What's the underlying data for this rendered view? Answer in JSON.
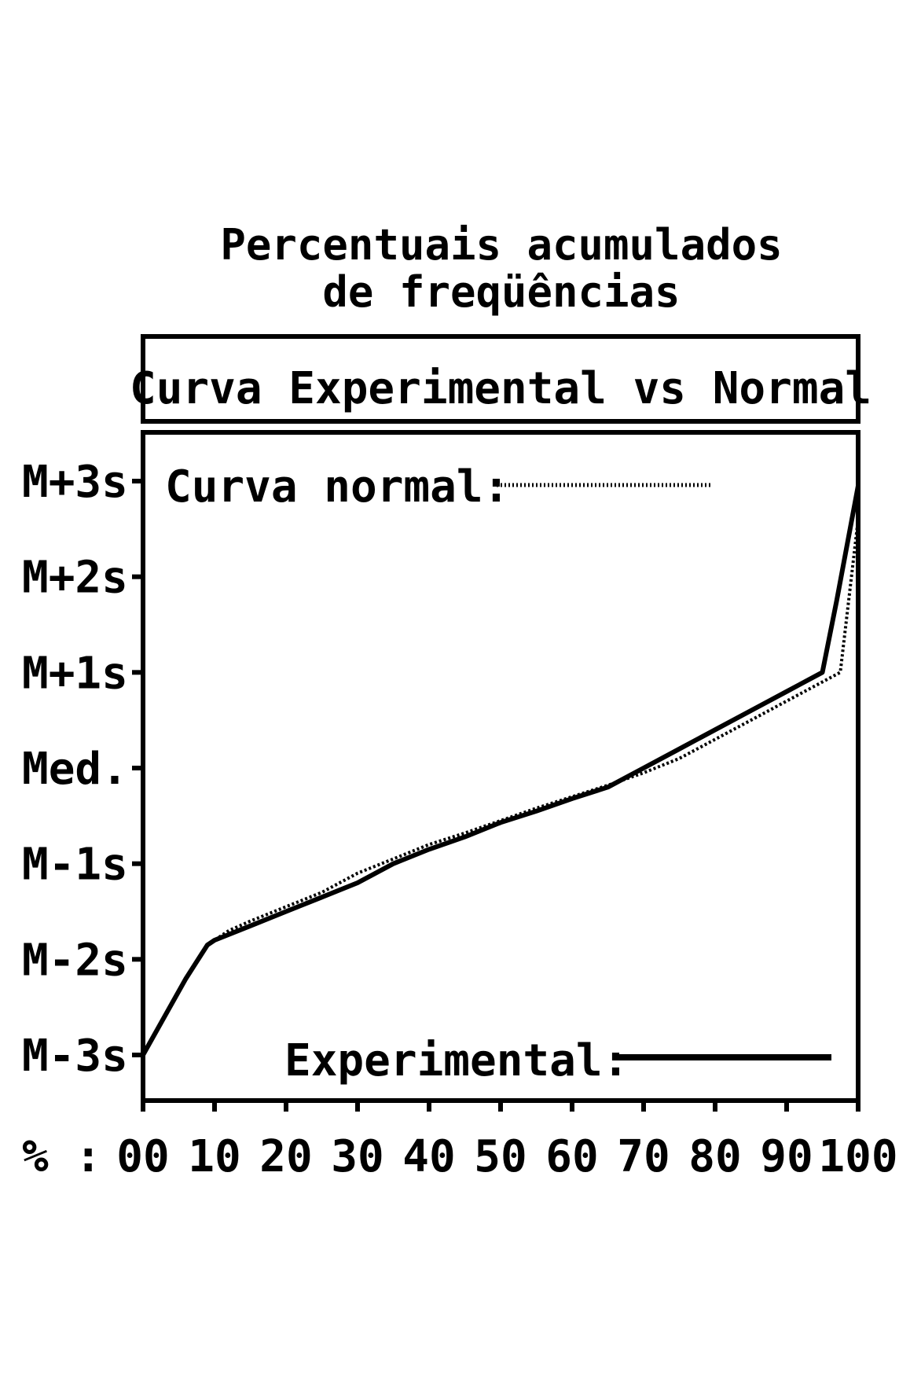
{
  "chart_data": {
    "type": "line",
    "title_line1": "Percentuais acumulados",
    "title_line2": "de freqüências",
    "subtitle": "Curva Experimental vs Normal",
    "x_prefix": "% :",
    "xlim": [
      0,
      100
    ],
    "ylim": [
      -3,
      3
    ],
    "x_ticks": [
      {
        "value": 0,
        "label": "00"
      },
      {
        "value": 10,
        "label": "10"
      },
      {
        "value": 20,
        "label": "20"
      },
      {
        "value": 30,
        "label": "30"
      },
      {
        "value": 40,
        "label": "40"
      },
      {
        "value": 50,
        "label": "50"
      },
      {
        "value": 60,
        "label": "60"
      },
      {
        "value": 70,
        "label": "70"
      },
      {
        "value": 80,
        "label": "80"
      },
      {
        "value": 90,
        "label": "90"
      },
      {
        "value": 100,
        "label": "100"
      }
    ],
    "y_ticks": [
      {
        "value": 3,
        "label": "M+3s"
      },
      {
        "value": 2,
        "label": "M+2s"
      },
      {
        "value": 1,
        "label": "M+1s"
      },
      {
        "value": 0,
        "label": "Med."
      },
      {
        "value": -1,
        "label": "M-1s"
      },
      {
        "value": -2,
        "label": "M-2s"
      },
      {
        "value": -3,
        "label": "M-3s"
      }
    ],
    "series": [
      {
        "name": "Curva normal:",
        "style": "dotted",
        "color": "#000000",
        "points": [
          [
            0,
            -3.0
          ],
          [
            3,
            -2.6
          ],
          [
            6,
            -2.2
          ],
          [
            9,
            -1.85
          ],
          [
            12,
            -1.7
          ],
          [
            15,
            -1.6
          ],
          [
            20,
            -1.45
          ],
          [
            25,
            -1.3
          ],
          [
            30,
            -1.1
          ],
          [
            35,
            -0.95
          ],
          [
            40,
            -0.8
          ],
          [
            45,
            -0.68
          ],
          [
            50,
            -0.55
          ],
          [
            55,
            -0.42
          ],
          [
            60,
            -0.3
          ],
          [
            65,
            -0.18
          ],
          [
            70,
            -0.05
          ],
          [
            75,
            0.1
          ],
          [
            80,
            0.3
          ],
          [
            85,
            0.5
          ],
          [
            90,
            0.7
          ],
          [
            95,
            0.9
          ],
          [
            97.5,
            1.0
          ],
          [
            100,
            2.6
          ]
        ]
      },
      {
        "name": "Experimental:",
        "style": "solid",
        "color": "#000000",
        "points": [
          [
            0,
            -3.0
          ],
          [
            3,
            -2.6
          ],
          [
            6,
            -2.2
          ],
          [
            9,
            -1.85
          ],
          [
            10,
            -1.8
          ],
          [
            15,
            -1.65
          ],
          [
            20,
            -1.5
          ],
          [
            25,
            -1.35
          ],
          [
            30,
            -1.2
          ],
          [
            35,
            -1.0
          ],
          [
            40,
            -0.85
          ],
          [
            45,
            -0.72
          ],
          [
            50,
            -0.57
          ],
          [
            55,
            -0.45
          ],
          [
            60,
            -0.32
          ],
          [
            65,
            -0.2
          ],
          [
            70,
            0.0
          ],
          [
            75,
            0.2
          ],
          [
            80,
            0.4
          ],
          [
            85,
            0.6
          ],
          [
            90,
            0.8
          ],
          [
            95,
            1.0
          ],
          [
            97,
            1.75
          ],
          [
            100,
            2.95
          ]
        ]
      }
    ]
  }
}
